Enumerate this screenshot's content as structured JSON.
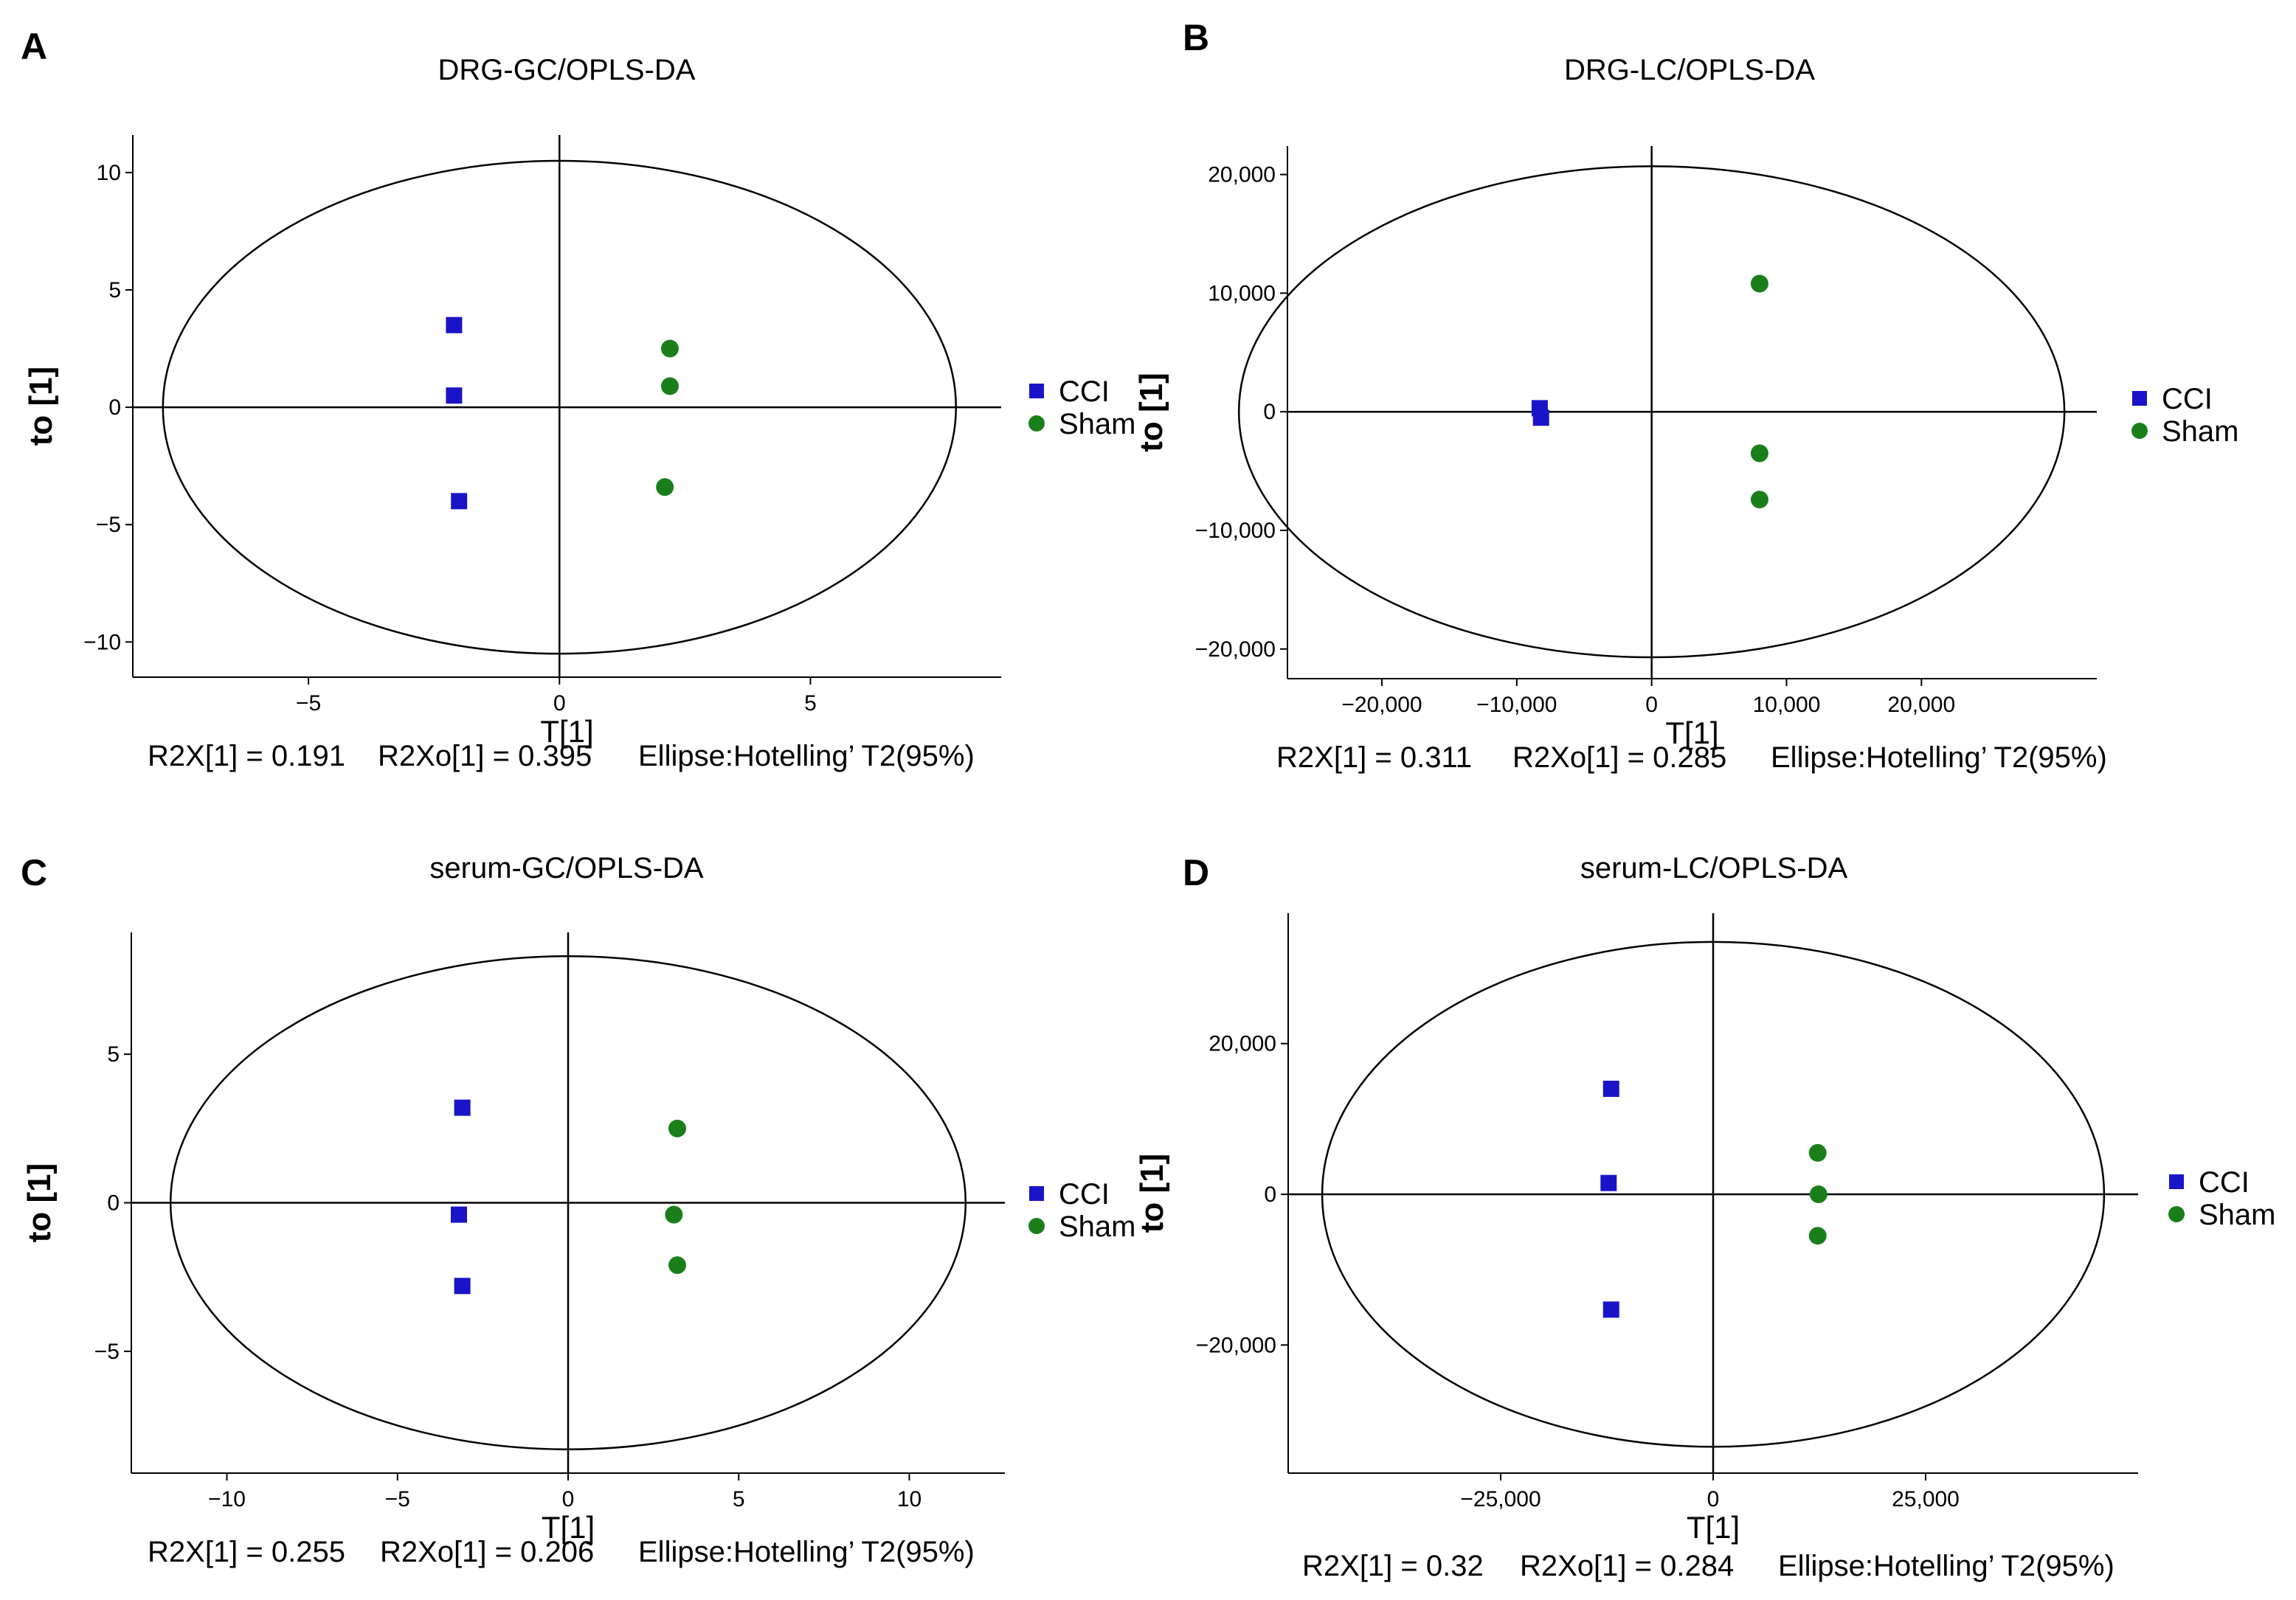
{
  "colors": {
    "cci": "#1a14c8",
    "sham": "#1a7f1a",
    "axis": "#000000"
  },
  "chart_data": [
    {
      "panel": "A",
      "type": "scatter",
      "title": "DRG-GC/OPLS-DA",
      "xlabel": "T[1]",
      "ylabel": "to [1]",
      "xlim": [
        -8.5,
        8.8
      ],
      "ylim": [
        -11.5,
        11.6
      ],
      "xticks": [
        -5,
        0,
        5
      ],
      "yticks": [
        10,
        5,
        0,
        -5,
        -10
      ],
      "xtick_labels": [
        "−5",
        "0",
        "5"
      ],
      "ytick_labels": [
        "10",
        "5",
        "0",
        "−5",
        "−10"
      ],
      "ellipse": {
        "rx": 7.9,
        "ry": 10.5
      },
      "series": [
        {
          "name": "CCI",
          "marker": "square",
          "points": [
            [
              -2.1,
              3.5
            ],
            [
              -2.1,
              0.5
            ],
            [
              -2.0,
              -4.0
            ]
          ]
        },
        {
          "name": "Sham",
          "marker": "circle",
          "points": [
            [
              2.2,
              2.5
            ],
            [
              2.2,
              0.9
            ],
            [
              2.1,
              -3.4
            ]
          ]
        }
      ],
      "stats": {
        "r2x": "R2X[1] = 0.191",
        "r2xo": "R2Xo[1] = 0.395",
        "ellipse": "Ellipse:Hotelling’ T2(95%)"
      }
    },
    {
      "panel": "B",
      "type": "scatter",
      "title": "DRG-LC/OPLS-DA",
      "xlabel": "T[1]",
      "ylabel": "to [1]",
      "xlim": [
        -27000,
        33000
      ],
      "ylim": [
        -22500,
        22400
      ],
      "xticks": [
        -20000,
        -10000,
        0,
        10000,
        20000
      ],
      "yticks": [
        20000,
        10000,
        0,
        -10000,
        -20000
      ],
      "xtick_labels": [
        "−20,000",
        "−10,000",
        "0",
        "10,000",
        "20,000"
      ],
      "ytick_labels": [
        "20,000",
        "10,000",
        "0",
        "−10,000",
        "−20,000"
      ],
      "ellipse": {
        "rx": 30600,
        "ry": 20700
      },
      "series": [
        {
          "name": "CCI",
          "marker": "square",
          "points": [
            [
              -8300,
              300
            ],
            [
              -8200,
              -500
            ]
          ]
        },
        {
          "name": "Sham",
          "marker": "circle",
          "points": [
            [
              8000,
              10800
            ],
            [
              8000,
              -3500
            ],
            [
              8000,
              -7400
            ]
          ]
        }
      ],
      "stats": {
        "r2x": "R2X[1] = 0.311",
        "r2xo": "R2Xo[1] = 0.285",
        "ellipse": "Ellipse:Hotelling’ T2(95%)"
      }
    },
    {
      "panel": "C",
      "type": "scatter",
      "title": "serum-GC/OPLS-DA",
      "xlabel": "T[1]",
      "ylabel": "to [1]",
      "xlim": [
        -12.8,
        12.8
      ],
      "ylim": [
        -9.1,
        9.1
      ],
      "xticks": [
        -10,
        -5,
        0,
        5,
        10
      ],
      "yticks": [
        5,
        0,
        -5
      ],
      "xtick_labels": [
        "−10",
        "−5",
        "0",
        "5",
        "10"
      ],
      "ytick_labels": [
        "5",
        "0",
        "−5"
      ],
      "ellipse": {
        "rx": 11.65,
        "ry": 8.3
      },
      "series": [
        {
          "name": "CCI",
          "marker": "square",
          "points": [
            [
              -3.1,
              3.2
            ],
            [
              -3.2,
              -0.4
            ],
            [
              -3.1,
              -2.8
            ]
          ]
        },
        {
          "name": "Sham",
          "marker": "circle",
          "points": [
            [
              3.2,
              2.5
            ],
            [
              3.1,
              -0.4
            ],
            [
              3.2,
              -2.1
            ]
          ]
        }
      ],
      "stats": {
        "r2x": "R2X[1] = 0.255",
        "r2xo": "R2Xo[1] = 0.206",
        "ellipse": "Ellipse:Hotelling’ T2(95%)"
      }
    },
    {
      "panel": "D",
      "type": "scatter",
      "title": "serum-LC/OPLS-DA",
      "xlabel": "T[1]",
      "ylabel": "to [1]",
      "xlim": [
        -50000,
        50000
      ],
      "ylim": [
        -37000,
        37300
      ],
      "xticks": [
        -25000,
        0,
        25000
      ],
      "yticks": [
        20000,
        0,
        -20000
      ],
      "xtick_labels": [
        "−25,000",
        "0",
        "25,000"
      ],
      "ytick_labels": [
        "20,000",
        "0",
        "−20,000"
      ],
      "ellipse": {
        "rx": 46000,
        "ry": 33500
      },
      "series": [
        {
          "name": "CCI",
          "marker": "square",
          "points": [
            [
              -12000,
              14000
            ],
            [
              -12300,
              1500
            ],
            [
              -12000,
              -15300
            ]
          ]
        },
        {
          "name": "Sham",
          "marker": "circle",
          "points": [
            [
              12300,
              5500
            ],
            [
              12400,
              0
            ],
            [
              12300,
              -5500
            ]
          ]
        }
      ],
      "stats": {
        "r2x": "R2X[1] = 0.32",
        "r2xo": "R2Xo[1] = 0.284",
        "ellipse": "Ellipse:Hotelling’ T2(95%)"
      }
    }
  ]
}
